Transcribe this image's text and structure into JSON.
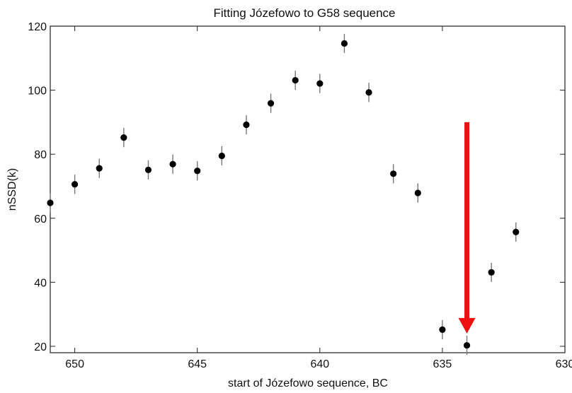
{
  "chart_data": {
    "type": "scatter",
    "title": "Fitting Józefowo to G58 sequence",
    "xlabel": "start of Józefowo sequence, BC",
    "ylabel": "nSSD(k)",
    "xlim": [
      651,
      630
    ],
    "ylim": [
      18,
      120
    ],
    "x_reversed": true,
    "xticks": [
      650,
      645,
      640,
      635,
      630
    ],
    "yticks": [
      20,
      40,
      60,
      80,
      100,
      120
    ],
    "grid": false,
    "marker_color": "#000000",
    "errorbar_color": "#777777",
    "points": [
      {
        "x": 651,
        "y": 64.8,
        "err": 3
      },
      {
        "x": 650,
        "y": 70.6,
        "err": 3
      },
      {
        "x": 649,
        "y": 75.6,
        "err": 3
      },
      {
        "x": 648,
        "y": 85.2,
        "err": 3
      },
      {
        "x": 647,
        "y": 75.1,
        "err": 3
      },
      {
        "x": 646,
        "y": 76.9,
        "err": 3
      },
      {
        "x": 645,
        "y": 74.8,
        "err": 3
      },
      {
        "x": 644,
        "y": 79.5,
        "err": 3
      },
      {
        "x": 643,
        "y": 89.2,
        "err": 3
      },
      {
        "x": 642,
        "y": 95.9,
        "err": 3
      },
      {
        "x": 641,
        "y": 103.1,
        "err": 3
      },
      {
        "x": 640,
        "y": 102.1,
        "err": 3
      },
      {
        "x": 639,
        "y": 114.6,
        "err": 3
      },
      {
        "x": 638,
        "y": 99.3,
        "err": 3
      },
      {
        "x": 637,
        "y": 73.9,
        "err": 3
      },
      {
        "x": 636,
        "y": 67.9,
        "err": 3
      },
      {
        "x": 635,
        "y": 25.2,
        "err": 3
      },
      {
        "x": 634,
        "y": 20.3,
        "err": 3
      },
      {
        "x": 633,
        "y": 43.1,
        "err": 3
      },
      {
        "x": 632,
        "y": 55.7,
        "err": 3
      }
    ],
    "annotations": [
      {
        "type": "arrow",
        "color": "#ee1111",
        "x": 634,
        "y_from": 90,
        "y_to": 24
      }
    ]
  }
}
